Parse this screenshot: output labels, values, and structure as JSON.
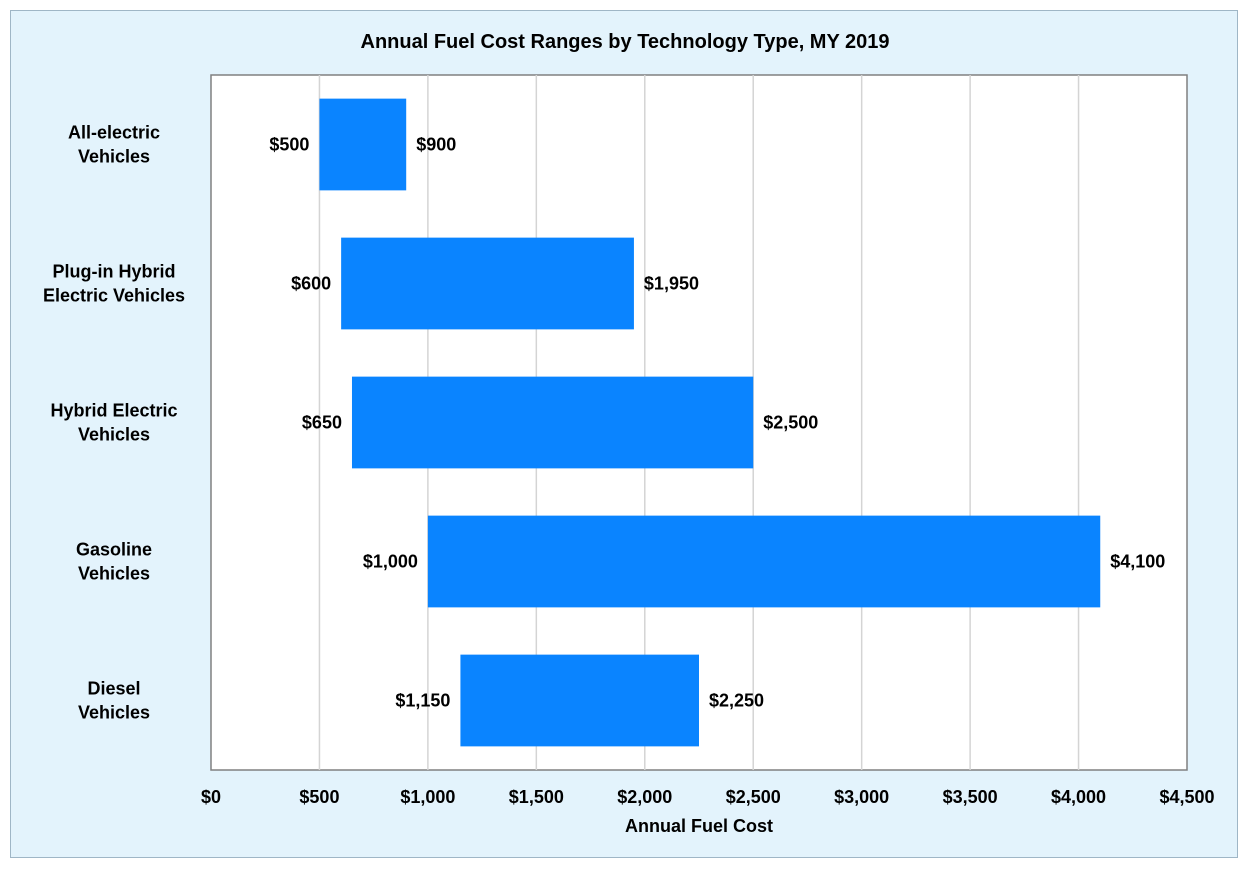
{
  "chart_data": {
    "type": "bar",
    "orientation": "horizontal",
    "title": "Annual Fuel Cost Ranges by Technology Type, MY 2019",
    "xlabel": "Annual Fuel Cost",
    "ylabel": "",
    "xlim": [
      0,
      4500
    ],
    "grid": true,
    "x_ticks": [
      "$0",
      "$500",
      "$1,000",
      "$1,500",
      "$2,000",
      "$2,500",
      "$3,000",
      "$3,500",
      "$4,000",
      "$4,500"
    ],
    "categories": [
      [
        "All-electric",
        "Vehicles"
      ],
      [
        "Plug-in Hybrid",
        "Electric Vehicles"
      ],
      [
        "Hybrid Electric",
        "Vehicles"
      ],
      [
        "Gasoline",
        "Vehicles"
      ],
      [
        "Diesel",
        "Vehicles"
      ]
    ],
    "ranges": [
      {
        "low": 500,
        "high": 900,
        "low_label": "$500",
        "high_label": "$900"
      },
      {
        "low": 600,
        "high": 1950,
        "low_label": "$600",
        "high_label": "$1,950"
      },
      {
        "low": 650,
        "high": 2500,
        "low_label": "$650",
        "high_label": "$2,500"
      },
      {
        "low": 1000,
        "high": 4100,
        "low_label": "$1,000",
        "high_label": "$4,100"
      },
      {
        "low": 1150,
        "high": 2250,
        "low_label": "$1,150",
        "high_label": "$2,250"
      }
    ],
    "bar_color": "#0a84ff"
  }
}
